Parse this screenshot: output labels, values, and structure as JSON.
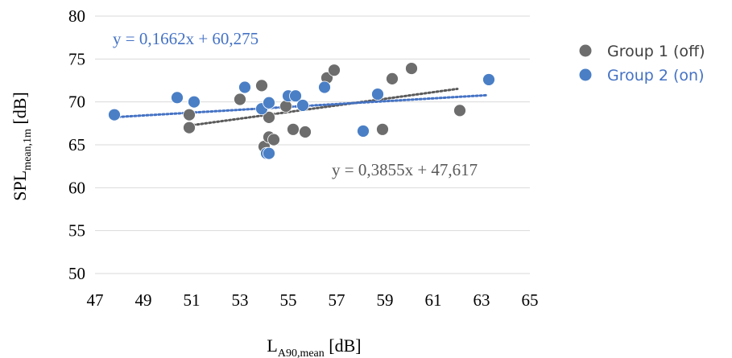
{
  "chart_data": {
    "type": "scatter",
    "xlabel": {
      "main": "L",
      "sub": "A90,mean",
      "unit": " [dB]"
    },
    "ylabel": {
      "main": "SPL",
      "sub": "mean,1m",
      "unit": " [dB]"
    },
    "xlim": [
      47,
      65
    ],
    "ylim": [
      50,
      80
    ],
    "xticks": [
      "47",
      "49",
      "51",
      "53",
      "55",
      "57",
      "59",
      "61",
      "63",
      "65"
    ],
    "yticks": [
      "50",
      "55",
      "60",
      "65",
      "70",
      "75",
      "80"
    ],
    "grid": "horizontal",
    "legend": "right",
    "series": [
      {
        "name": "Group 1 (off)",
        "color": "#6d6d6d",
        "trend_color": "#5a5a5a",
        "trendline": {
          "slope": 0.3855,
          "intercept": 47.617,
          "x_range": [
            50.9,
            62
          ],
          "equation": "y = 0,3855x + 47,617"
        },
        "points": [
          {
            "x": 50.9,
            "y": 68.5
          },
          {
            "x": 50.9,
            "y": 67.0
          },
          {
            "x": 53.0,
            "y": 70.3
          },
          {
            "x": 53.9,
            "y": 71.9
          },
          {
            "x": 54.0,
            "y": 64.8
          },
          {
            "x": 54.2,
            "y": 65.9
          },
          {
            "x": 54.2,
            "y": 68.2
          },
          {
            "x": 54.4,
            "y": 65.6
          },
          {
            "x": 54.9,
            "y": 69.5
          },
          {
            "x": 55.2,
            "y": 66.8
          },
          {
            "x": 55.7,
            "y": 66.5
          },
          {
            "x": 56.6,
            "y": 72.8
          },
          {
            "x": 56.9,
            "y": 73.7
          },
          {
            "x": 58.9,
            "y": 66.8
          },
          {
            "x": 59.3,
            "y": 72.7
          },
          {
            "x": 60.1,
            "y": 73.9
          },
          {
            "x": 62.1,
            "y": 69.0
          }
        ]
      },
      {
        "name": "Group 2 (on)",
        "color": "#4a7fc6",
        "trend_color": "#4472c4",
        "trendline": {
          "slope": 0.1662,
          "intercept": 60.275,
          "x_range": [
            47.8,
            63.2
          ],
          "equation": "y = 0,1662x + 60,275"
        },
        "points": [
          {
            "x": 47.8,
            "y": 68.5
          },
          {
            "x": 50.4,
            "y": 70.5
          },
          {
            "x": 51.1,
            "y": 70.0
          },
          {
            "x": 53.2,
            "y": 71.7
          },
          {
            "x": 53.9,
            "y": 69.2
          },
          {
            "x": 54.1,
            "y": 64.0
          },
          {
            "x": 54.2,
            "y": 64.0
          },
          {
            "x": 54.2,
            "y": 69.9
          },
          {
            "x": 55.0,
            "y": 70.7
          },
          {
            "x": 55.3,
            "y": 70.7
          },
          {
            "x": 55.6,
            "y": 69.6
          },
          {
            "x": 56.5,
            "y": 71.7
          },
          {
            "x": 58.1,
            "y": 66.6
          },
          {
            "x": 58.7,
            "y": 70.9
          },
          {
            "x": 63.3,
            "y": 72.6
          }
        ]
      }
    ]
  }
}
